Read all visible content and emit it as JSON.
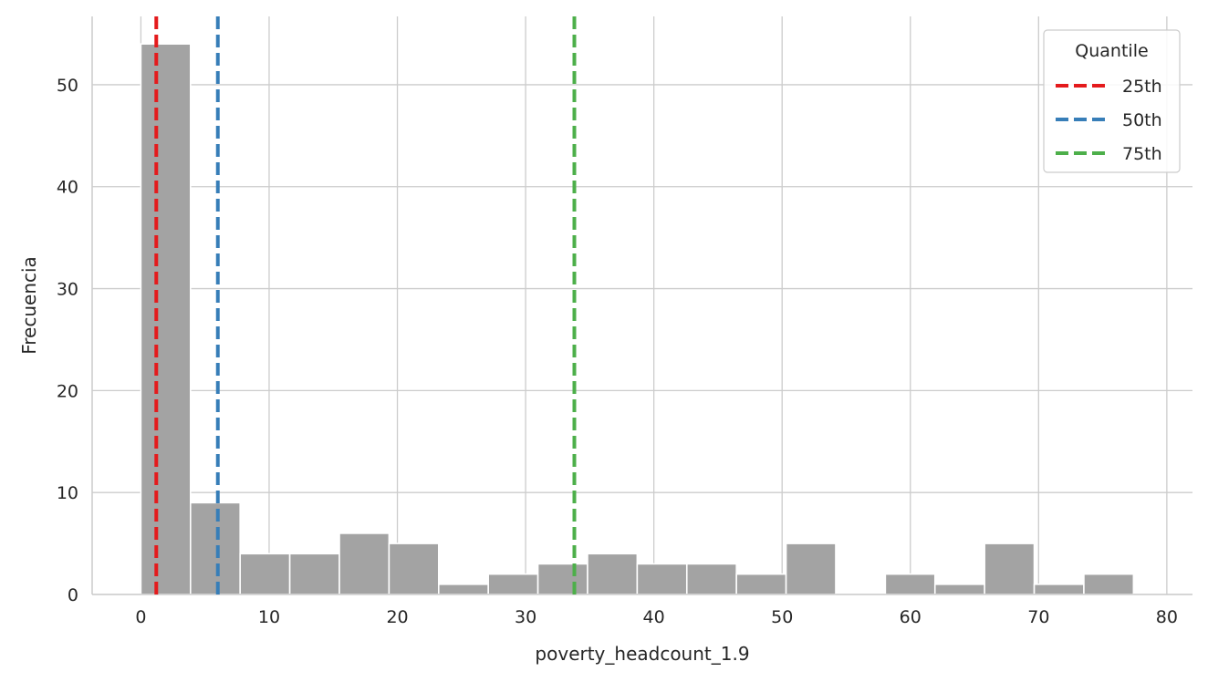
{
  "chart_data": {
    "type": "bar",
    "subtype": "histogram",
    "xlabel": "poverty_headcount_1.9",
    "ylabel": "Frecuencia",
    "xlim": [
      -3.8,
      82.0
    ],
    "ylim": [
      0,
      56.7
    ],
    "xticks": [
      0,
      10,
      20,
      30,
      40,
      50,
      60,
      70,
      80
    ],
    "yticks": [
      0,
      10,
      20,
      30,
      40,
      50
    ],
    "grid": true,
    "bar_color": "#a3a3a3",
    "bins": [
      {
        "x0": 0.0,
        "x1": 3.87,
        "count": 54
      },
      {
        "x0": 3.87,
        "x1": 7.74,
        "count": 9
      },
      {
        "x0": 7.74,
        "x1": 11.61,
        "count": 4
      },
      {
        "x0": 11.61,
        "x1": 15.48,
        "count": 4
      },
      {
        "x0": 15.48,
        "x1": 19.35,
        "count": 6
      },
      {
        "x0": 19.35,
        "x1": 23.22,
        "count": 5
      },
      {
        "x0": 23.22,
        "x1": 27.09,
        "count": 1
      },
      {
        "x0": 27.09,
        "x1": 30.96,
        "count": 2
      },
      {
        "x0": 30.96,
        "x1": 34.83,
        "count": 3
      },
      {
        "x0": 34.83,
        "x1": 38.7,
        "count": 4
      },
      {
        "x0": 38.7,
        "x1": 42.57,
        "count": 3
      },
      {
        "x0": 42.57,
        "x1": 46.44,
        "count": 3
      },
      {
        "x0": 46.44,
        "x1": 50.31,
        "count": 2
      },
      {
        "x0": 50.31,
        "x1": 54.18,
        "count": 5
      },
      {
        "x0": 54.18,
        "x1": 58.05,
        "count": 0
      },
      {
        "x0": 58.05,
        "x1": 61.92,
        "count": 2
      },
      {
        "x0": 61.92,
        "x1": 65.79,
        "count": 1
      },
      {
        "x0": 65.79,
        "x1": 69.66,
        "count": 5
      },
      {
        "x0": 69.66,
        "x1": 73.53,
        "count": 1
      },
      {
        "x0": 73.53,
        "x1": 77.4,
        "count": 2
      }
    ],
    "quantile_lines": [
      {
        "name": "25th",
        "x": 1.2,
        "color": "#e41a1c"
      },
      {
        "name": "50th",
        "x": 6.0,
        "color": "#377eb8"
      },
      {
        "name": "75th",
        "x": 33.8,
        "color": "#4daf4a"
      }
    ],
    "legend": {
      "title": "Quantile",
      "placement": "top-right"
    }
  }
}
